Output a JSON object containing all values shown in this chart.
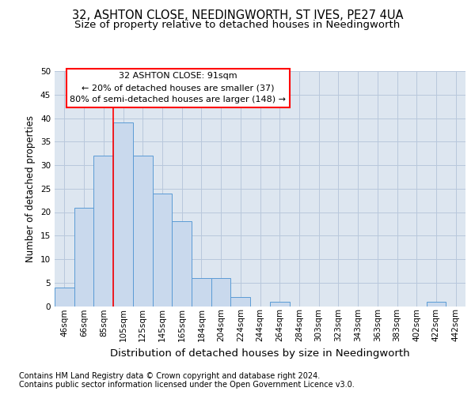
{
  "title_line1": "32, ASHTON CLOSE, NEEDINGWORTH, ST IVES, PE27 4UA",
  "title_line2": "Size of property relative to detached houses in Needingworth",
  "xlabel": "Distribution of detached houses by size in Needingworth",
  "ylabel": "Number of detached properties",
  "footer_line1": "Contains HM Land Registry data © Crown copyright and database right 2024.",
  "footer_line2": "Contains public sector information licensed under the Open Government Licence v3.0.",
  "categories": [
    "46sqm",
    "66sqm",
    "85sqm",
    "105sqm",
    "125sqm",
    "145sqm",
    "165sqm",
    "184sqm",
    "204sqm",
    "224sqm",
    "244sqm",
    "264sqm",
    "284sqm",
    "303sqm",
    "323sqm",
    "343sqm",
    "363sqm",
    "383sqm",
    "402sqm",
    "422sqm",
    "442sqm"
  ],
  "values": [
    4,
    21,
    32,
    39,
    32,
    24,
    18,
    6,
    6,
    2,
    0,
    1,
    0,
    0,
    0,
    0,
    0,
    0,
    0,
    1,
    0
  ],
  "bar_color": "#c9d9ed",
  "bar_edge_color": "#5b9bd5",
  "grid_color": "#b8c8dc",
  "background_color": "#dde6f0",
  "annotation_text": "32 ASHTON CLOSE: 91sqm\n← 20% of detached houses are smaller (37)\n80% of semi-detached houses are larger (148) →",
  "annotation_box_color": "white",
  "annotation_box_edge": "red",
  "ylim": [
    0,
    50
  ],
  "yticks": [
    0,
    5,
    10,
    15,
    20,
    25,
    30,
    35,
    40,
    45,
    50
  ],
  "title1_fontsize": 10.5,
  "title2_fontsize": 9.5,
  "xlabel_fontsize": 9.5,
  "ylabel_fontsize": 8.5,
  "tick_fontsize": 7.5,
  "annotation_fontsize": 8,
  "footer_fontsize": 7
}
